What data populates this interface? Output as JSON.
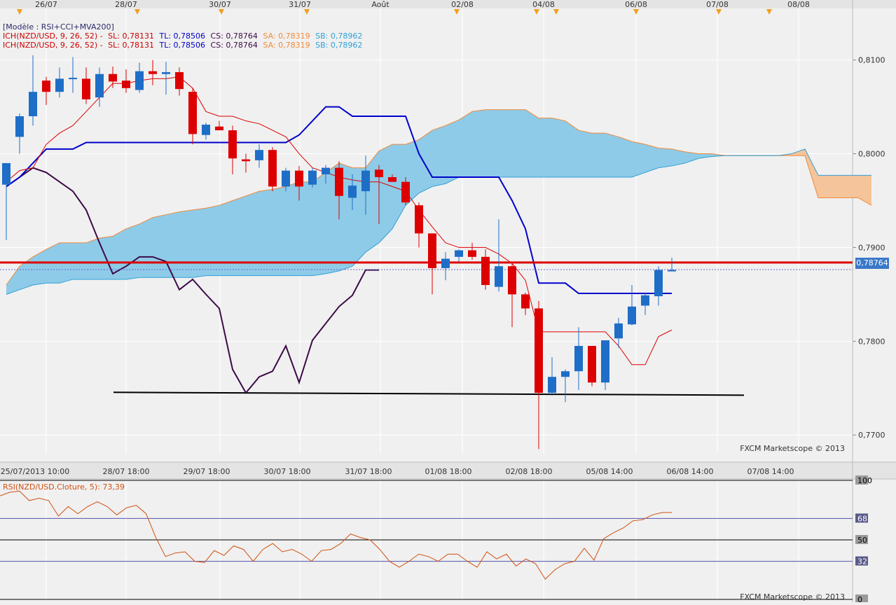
{
  "colors": {
    "background": "#f0f0f0",
    "grid": "#ffffff",
    "bull": "#1e6ec8",
    "bear": "#dd0000",
    "bear_dark": "#7f3040",
    "tenkan": "#dd0000",
    "kijun": "#0000cc",
    "chikou": "#3c0a46",
    "cloud_bull": "#8ecbe8",
    "cloud_bear": "#f5c49a",
    "senkou_a": "#f08a3a",
    "senkou_b": "#30a0d8",
    "resistance": "#dd0000",
    "rsi": "#d05010"
  },
  "header": {
    "model": "[Modèle : RSI+CCI+MVA200]",
    "ich_line_1": {
      "name": "ICH(NZD/USD, 9, 26, 52) -",
      "sl": "SL: 0,78131",
      "tl": "TL: 0,78506",
      "cs": "CS: 0,78764",
      "sa": "SA: 0,78319",
      "sb": "SB: 0,78962"
    },
    "ich_line_2": {
      "name": "ICH(NZD/USD, 9, 26, 52) -",
      "sl": "SL: 0,78131",
      "tl": "TL: 0,78506",
      "cs": "CS: 0,78764",
      "sa": "SA: 0,78319",
      "sb": "SB: 0,78962"
    }
  },
  "current_price": "0,78764",
  "watermark": "FXCM Marketscope © 2013",
  "chart_data": [
    {
      "type": "candlestick",
      "symbol": "NZD/USD",
      "top_date_labels": [
        "26/07",
        "28/07",
        "30/07",
        "31/07",
        "Août",
        "02/08",
        "04/08",
        "06/08",
        "07/08",
        "08/08"
      ],
      "bottom_time_labels": [
        "25/07/2013 10:00",
        "28/07 18:00",
        "29/07 18:00",
        "30/07 18:00",
        "31/07 18:00",
        "01/08 18:00",
        "02/08 18:00",
        "05/08 14:00",
        "06/08 14:00",
        "07/08 14:00"
      ],
      "y_tick_labels": [
        "0,8100",
        "0,8000",
        "0,7900",
        "0,7800",
        "0,7700"
      ],
      "ylim": [
        0.768,
        0.8155
      ],
      "candles": [
        {
          "o": 0.7967,
          "h": 0.7988,
          "l": 0.7908,
          "c": 0.799
        },
        {
          "o": 0.8018,
          "h": 0.8043,
          "l": 0.8,
          "c": 0.804
        },
        {
          "o": 0.804,
          "h": 0.8105,
          "l": 0.803,
          "c": 0.8066
        },
        {
          "o": 0.8078,
          "h": 0.8082,
          "l": 0.8052,
          "c": 0.8066
        },
        {
          "o": 0.8066,
          "h": 0.8092,
          "l": 0.806,
          "c": 0.808
        },
        {
          "o": 0.808,
          "h": 0.8103,
          "l": 0.8065,
          "c": 0.8081
        },
        {
          "o": 0.808,
          "h": 0.8092,
          "l": 0.8053,
          "c": 0.8058
        },
        {
          "o": 0.806,
          "h": 0.8092,
          "l": 0.805,
          "c": 0.8085
        },
        {
          "o": 0.8085,
          "h": 0.8093,
          "l": 0.807,
          "c": 0.8077
        },
        {
          "o": 0.8078,
          "h": 0.809,
          "l": 0.8065,
          "c": 0.807
        },
        {
          "o": 0.8068,
          "h": 0.8097,
          "l": 0.8065,
          "c": 0.8088
        },
        {
          "o": 0.8088,
          "h": 0.81,
          "l": 0.8073,
          "c": 0.8085
        },
        {
          "o": 0.8085,
          "h": 0.8098,
          "l": 0.8063,
          "c": 0.8087
        },
        {
          "o": 0.8087,
          "h": 0.8092,
          "l": 0.8062,
          "c": 0.8069
        },
        {
          "o": 0.8066,
          "h": 0.807,
          "l": 0.801,
          "c": 0.8021
        },
        {
          "o": 0.802,
          "h": 0.8033,
          "l": 0.8015,
          "c": 0.8031
        },
        {
          "o": 0.8029,
          "h": 0.8035,
          "l": 0.8025,
          "c": 0.8025
        },
        {
          "o": 0.8025,
          "h": 0.803,
          "l": 0.7978,
          "c": 0.7995
        },
        {
          "o": 0.7994,
          "h": 0.8,
          "l": 0.798,
          "c": 0.7992
        },
        {
          "o": 0.7993,
          "h": 0.801,
          "l": 0.7985,
          "c": 0.8004
        },
        {
          "o": 0.8004,
          "h": 0.8007,
          "l": 0.796,
          "c": 0.7965
        },
        {
          "o": 0.7965,
          "h": 0.7985,
          "l": 0.796,
          "c": 0.7982
        },
        {
          "o": 0.7982,
          "h": 0.7987,
          "l": 0.795,
          "c": 0.7965
        },
        {
          "o": 0.7967,
          "h": 0.7985,
          "l": 0.7964,
          "c": 0.7982
        },
        {
          "o": 0.7978,
          "h": 0.7988,
          "l": 0.7968,
          "c": 0.7985
        },
        {
          "o": 0.7985,
          "h": 0.7992,
          "l": 0.793,
          "c": 0.7955
        },
        {
          "o": 0.7953,
          "h": 0.7978,
          "l": 0.794,
          "c": 0.7966
        },
        {
          "o": 0.796,
          "h": 0.7998,
          "l": 0.7935,
          "c": 0.7982
        },
        {
          "o": 0.7983,
          "h": 0.7988,
          "l": 0.7925,
          "c": 0.7975
        },
        {
          "o": 0.7975,
          "h": 0.7978,
          "l": 0.797,
          "c": 0.797
        },
        {
          "o": 0.797,
          "h": 0.7975,
          "l": 0.7945,
          "c": 0.7948
        },
        {
          "o": 0.7945,
          "h": 0.7948,
          "l": 0.79,
          "c": 0.7915
        },
        {
          "o": 0.7915,
          "h": 0.7915,
          "l": 0.785,
          "c": 0.7878
        },
        {
          "o": 0.7878,
          "h": 0.7895,
          "l": 0.7865,
          "c": 0.7888
        },
        {
          "o": 0.789,
          "h": 0.7898,
          "l": 0.7885,
          "c": 0.7897
        },
        {
          "o": 0.7897,
          "h": 0.7905,
          "l": 0.7887,
          "c": 0.789
        },
        {
          "o": 0.789,
          "h": 0.7898,
          "l": 0.7855,
          "c": 0.786
        },
        {
          "o": 0.7858,
          "h": 0.793,
          "l": 0.7853,
          "c": 0.788
        },
        {
          "o": 0.788,
          "h": 0.7885,
          "l": 0.7815,
          "c": 0.785
        },
        {
          "o": 0.785,
          "h": 0.7852,
          "l": 0.7828,
          "c": 0.7835
        },
        {
          "o": 0.7835,
          "h": 0.7843,
          "l": 0.7685,
          "c": 0.7745
        },
        {
          "o": 0.7745,
          "h": 0.7783,
          "l": 0.7742,
          "c": 0.7762
        },
        {
          "o": 0.7762,
          "h": 0.777,
          "l": 0.7735,
          "c": 0.7768
        },
        {
          "o": 0.7768,
          "h": 0.7815,
          "l": 0.7748,
          "c": 0.7795
        },
        {
          "o": 0.7795,
          "h": 0.7795,
          "l": 0.7752,
          "c": 0.7756
        },
        {
          "o": 0.7756,
          "h": 0.78,
          "l": 0.7748,
          "c": 0.7801
        },
        {
          "o": 0.7803,
          "h": 0.7825,
          "l": 0.7793,
          "c": 0.7819
        },
        {
          "o": 0.7818,
          "h": 0.786,
          "l": 0.7817,
          "c": 0.7837
        },
        {
          "o": 0.7838,
          "h": 0.7852,
          "l": 0.7828,
          "c": 0.7849
        },
        {
          "o": 0.7848,
          "h": 0.788,
          "l": 0.7838,
          "c": 0.7876
        },
        {
          "o": 0.7876,
          "h": 0.7889,
          "l": 0.7875,
          "c": 0.7876
        }
      ],
      "tenkan": [
        0.797,
        0.7982,
        0.7985,
        0.801,
        0.8022,
        0.803,
        0.8045,
        0.806,
        0.8075,
        0.8075,
        0.8078,
        0.808,
        0.808,
        0.8082,
        0.807,
        0.8045,
        0.804,
        0.804,
        0.8035,
        0.8032,
        0.8025,
        0.8018,
        0.8,
        0.7985,
        0.798,
        0.7975,
        0.7972,
        0.797,
        0.797,
        0.7965,
        0.796,
        0.794,
        0.7922,
        0.7905,
        0.79,
        0.79,
        0.79,
        0.7893,
        0.7883,
        0.7865,
        0.781,
        0.781,
        0.781,
        0.781,
        0.781,
        0.781,
        0.7795,
        0.7775,
        0.7775,
        0.7805,
        0.7812
      ],
      "kijun": [
        0.7965,
        0.7975,
        0.799,
        0.8005,
        0.8005,
        0.8005,
        0.8012,
        0.8012,
        0.8012,
        0.8012,
        0.8012,
        0.8012,
        0.8012,
        0.8012,
        0.8012,
        0.8012,
        0.8012,
        0.8012,
        0.8012,
        0.8012,
        0.8012,
        0.8012,
        0.802,
        0.8035,
        0.805,
        0.805,
        0.804,
        0.804,
        0.804,
        0.804,
        0.804,
        0.8,
        0.7975,
        0.7975,
        0.7975,
        0.7975,
        0.7975,
        0.7975,
        0.795,
        0.792,
        0.7862,
        0.7862,
        0.7862,
        0.7851,
        0.7851,
        0.7851,
        0.7851,
        0.7851,
        0.7851,
        0.7851,
        0.7851
      ],
      "chikou": [
        0.7965,
        0.7975,
        0.7985,
        0.798,
        0.797,
        0.796,
        0.794,
        0.7905,
        0.7872,
        0.788,
        0.789,
        0.789,
        0.7885,
        0.7855,
        0.7866,
        0.785,
        0.7835,
        0.777,
        0.7745,
        0.7762,
        0.7768,
        0.7795,
        0.7756,
        0.7801,
        0.7819,
        0.7837,
        0.7849,
        0.7876,
        0.7876
      ],
      "senkou_a": [
        0.786,
        0.788,
        0.789,
        0.7898,
        0.7905,
        0.7905,
        0.7905,
        0.791,
        0.7912,
        0.792,
        0.7925,
        0.7932,
        0.7935,
        0.7938,
        0.794,
        0.7942,
        0.7945,
        0.795,
        0.7955,
        0.796,
        0.7962,
        0.7965,
        0.797,
        0.797,
        0.798,
        0.799,
        0.7985,
        0.7985,
        0.8003,
        0.801,
        0.801,
        0.8015,
        0.8025,
        0.803,
        0.8036,
        0.8045,
        0.8047,
        0.8047,
        0.8047,
        0.8047,
        0.8038,
        0.8038,
        0.8035,
        0.8025,
        0.8022,
        0.8022,
        0.8018,
        0.8013,
        0.801,
        0.8006,
        0.8005,
        0.8002,
        0.8,
        0.8,
        0.7998,
        0.7998,
        0.7998,
        0.7998,
        0.7998,
        0.7998,
        0.7998,
        0.7953,
        0.7953,
        0.7953,
        0.7953,
        0.7945
      ],
      "senkou_b": [
        0.785,
        0.7855,
        0.786,
        0.7862,
        0.7862,
        0.7866,
        0.7866,
        0.7866,
        0.7866,
        0.7866,
        0.7868,
        0.7868,
        0.7868,
        0.7868,
        0.7868,
        0.787,
        0.787,
        0.787,
        0.787,
        0.787,
        0.787,
        0.787,
        0.787,
        0.787,
        0.7872,
        0.7875,
        0.788,
        0.7895,
        0.7905,
        0.792,
        0.7945,
        0.7958,
        0.7965,
        0.7968,
        0.7975,
        0.7975,
        0.7975,
        0.7975,
        0.7975,
        0.7975,
        0.7975,
        0.7975,
        0.7975,
        0.7975,
        0.7975,
        0.7975,
        0.7975,
        0.7975,
        0.798,
        0.7985,
        0.7987,
        0.799,
        0.7995,
        0.7997,
        0.7998,
        0.7998,
        0.7998,
        0.7998,
        0.7998,
        0.8,
        0.8005,
        0.7977,
        0.7977,
        0.7977,
        0.7977,
        0.7977
      ],
      "support_line": [
        0.77455,
        0.77425
      ],
      "resistance_line": 0.7884,
      "current_price": 0.78764
    },
    {
      "type": "line",
      "title": "RSI(NZD/USD.Cloture, 5): 73,39",
      "y_tick_labels": [
        "100",
        "68",
        "50",
        "32",
        "0"
      ],
      "levels": [
        100,
        68,
        50,
        32,
        0
      ],
      "ylim": [
        0,
        100
      ],
      "series": [
        {
          "values": [
            87,
            90,
            91,
            83,
            85,
            83,
            70,
            78,
            72,
            78,
            82,
            78,
            71,
            77,
            79,
            72,
            52,
            36,
            39,
            40,
            32,
            31,
            41,
            37,
            45,
            42,
            32,
            42,
            47,
            40,
            42,
            38,
            32,
            41,
            42,
            47,
            55,
            52,
            50,
            42,
            32,
            27,
            32,
            38,
            36,
            32,
            38,
            38,
            32,
            27,
            40,
            34,
            38,
            28,
            34,
            30,
            17,
            25,
            30,
            32,
            43,
            33,
            51,
            56,
            60,
            66,
            67,
            71,
            73,
            73
          ]
        }
      ]
    }
  ]
}
